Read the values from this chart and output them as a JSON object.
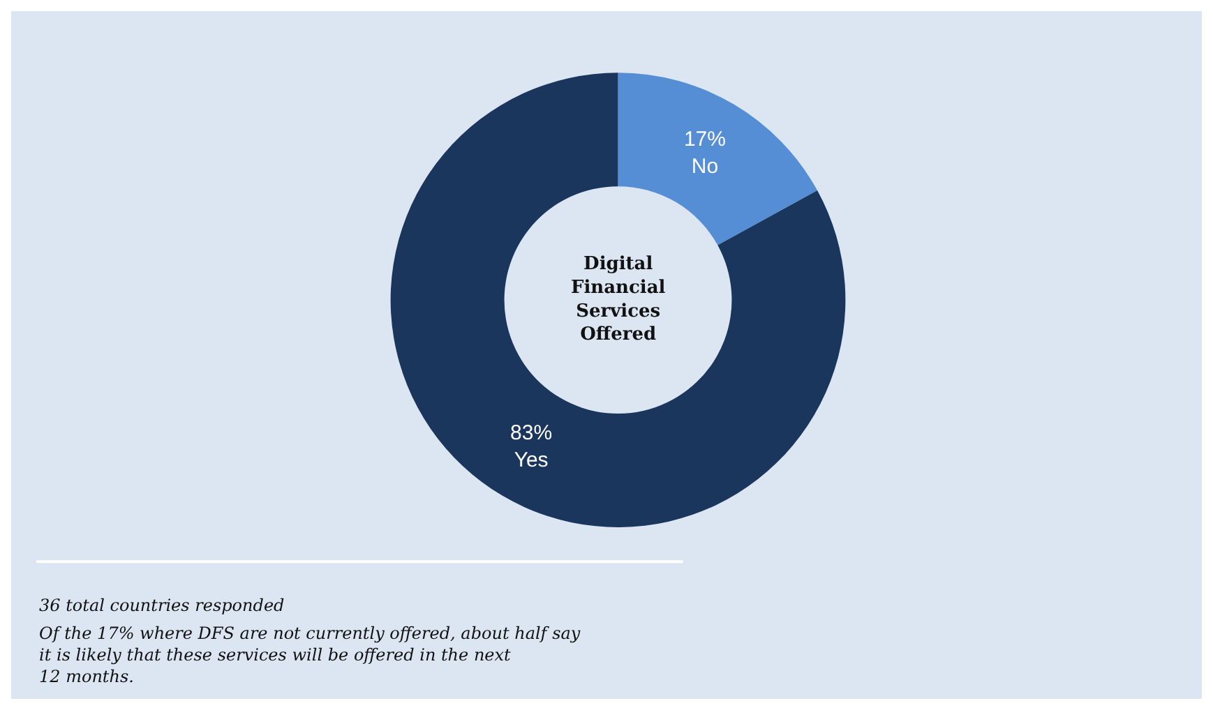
{
  "chart_data": {
    "type": "donut",
    "title": "Digital Financial Services Offered",
    "categories": [
      "No",
      "Yes"
    ],
    "values": [
      17,
      83
    ],
    "value_labels": [
      "17%",
      "83%"
    ],
    "colors": [
      "#558ed5",
      "#1a365d"
    ],
    "legend": false,
    "annotations": [
      "36 total countries responded",
      "Of the 17% where DFS are not currently offered, about half say it is likely that these services will be offered in the next 12 months."
    ]
  }
}
